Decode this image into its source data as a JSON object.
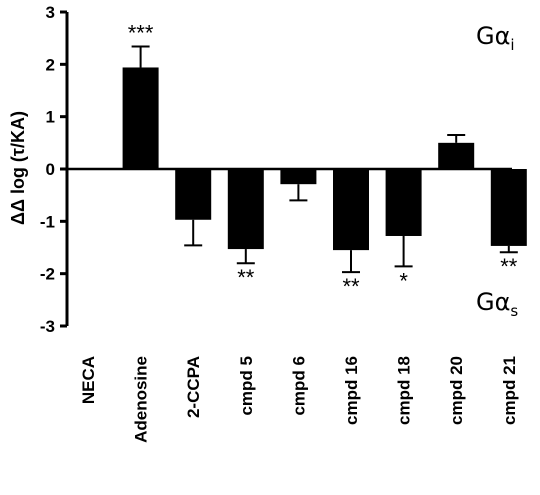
{
  "chart_data": {
    "type": "bar",
    "ylabel": "ΔΔ log (τ/KA)",
    "ylim": [
      -3,
      3
    ],
    "yticks": [
      -3,
      -2,
      -1,
      0,
      1,
      2,
      3
    ],
    "categories": [
      "NECA",
      "Adenosine",
      "2-CCPA",
      "cmpd 5",
      "cmpd 6",
      "cmpd 16",
      "cmpd 18",
      "cmpd 20",
      "cmpd 21"
    ],
    "values": [
      0,
      1.94,
      -0.97,
      -1.53,
      -0.29,
      -1.55,
      -1.28,
      0.5,
      -1.47
    ],
    "errors": [
      0,
      0.4,
      0.49,
      0.27,
      0.31,
      0.42,
      0.58,
      0.15,
      0.12
    ],
    "significance": [
      "",
      "***",
      "",
      "**",
      "",
      "**",
      "*",
      "",
      "**"
    ],
    "bar_color": "#000000",
    "annotations": [
      {
        "main": "Gα",
        "sub": "i",
        "position": "top-right"
      },
      {
        "main": "Gα",
        "sub": "s",
        "position": "bottom-right"
      }
    ]
  }
}
